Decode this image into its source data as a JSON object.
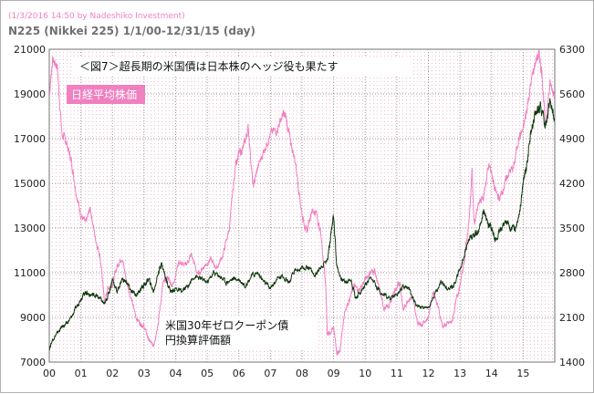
{
  "header": {
    "credit": "(1/3/2016 14:50 by Nadeshiko Investment)",
    "title": "N225 (Nikkei 225)  1/1/00-12/31/15 (day)"
  },
  "chart_data": {
    "type": "line",
    "title": "＜図7＞超長期の米国債は日本株のヘッジ役も果たす",
    "x_range": [
      "2000-01-01",
      "2015-12-31"
    ],
    "x_ticks": [
      "00",
      "01",
      "02",
      "03",
      "04",
      "05",
      "06",
      "07",
      "08",
      "09",
      "10",
      "11",
      "12",
      "13",
      "14",
      "15"
    ],
    "left_axis": {
      "ylim": [
        7000,
        21000
      ],
      "ticks": [
        "7000",
        "9000",
        "11000",
        "13000",
        "15000",
        "17000",
        "19000",
        "21000"
      ]
    },
    "right_axis": {
      "ylim": [
        1400,
        6300
      ],
      "ticks": [
        "1400",
        "2100",
        "2800",
        "3500",
        "4200",
        "4900",
        "5600",
        "6300"
      ]
    },
    "grid": true,
    "series": [
      {
        "name": "日経平均株価",
        "axis": "left",
        "color": "#f080c0",
        "x": [
          2000.0,
          2000.1,
          2000.25,
          2000.4,
          2000.55,
          2000.7,
          2000.85,
          2001.0,
          2001.15,
          2001.3,
          2001.45,
          2001.6,
          2001.7,
          2001.75,
          2001.85,
          2002.0,
          2002.15,
          2002.3,
          2002.45,
          2002.6,
          2002.75,
          2002.9,
          2003.0,
          2003.15,
          2003.3,
          2003.45,
          2003.6,
          2003.75,
          2003.9,
          2004.1,
          2004.3,
          2004.5,
          2004.7,
          2004.9,
          2005.1,
          2005.3,
          2005.5,
          2005.7,
          2005.9,
          2006.0,
          2006.15,
          2006.3,
          2006.45,
          2006.6,
          2006.8,
          2007.0,
          2007.2,
          2007.4,
          2007.5,
          2007.6,
          2007.8,
          2008.0,
          2008.15,
          2008.3,
          2008.45,
          2008.6,
          2008.75,
          2008.8,
          2008.9,
          2009.0,
          2009.1,
          2009.2,
          2009.35,
          2009.5,
          2009.65,
          2009.8,
          2010.0,
          2010.15,
          2010.3,
          2010.45,
          2010.6,
          2010.75,
          2010.9,
          2011.0,
          2011.1,
          2011.2,
          2011.35,
          2011.5,
          2011.65,
          2011.8,
          2012.0,
          2012.15,
          2012.3,
          2012.45,
          2012.6,
          2012.75,
          2012.9,
          2013.0,
          2013.15,
          2013.3,
          2013.38,
          2013.45,
          2013.6,
          2013.75,
          2013.9,
          2014.0,
          2014.1,
          2014.25,
          2014.4,
          2014.55,
          2014.7,
          2014.85,
          2015.0,
          2015.1,
          2015.25,
          2015.4,
          2015.5,
          2015.6,
          2015.7,
          2015.85,
          2016.0
        ],
        "y": [
          18900,
          20500,
          20300,
          17200,
          16800,
          16000,
          14600,
          13600,
          13200,
          13900,
          12600,
          11800,
          10500,
          9600,
          10300,
          10500,
          11300,
          11700,
          10600,
          9800,
          9000,
          8700,
          8600,
          8000,
          7700,
          8800,
          10500,
          10800,
          10400,
          11500,
          11300,
          11800,
          10900,
          11300,
          11600,
          11200,
          11800,
          13000,
          15900,
          16300,
          16600,
          17500,
          14800,
          15700,
          16500,
          17200,
          17400,
          18100,
          17900,
          17100,
          15900,
          13600,
          12800,
          13800,
          13700,
          12700,
          10500,
          8300,
          8300,
          8600,
          7400,
          7500,
          9300,
          9800,
          10400,
          10200,
          10700,
          11000,
          11100,
          10200,
          9400,
          9500,
          10100,
          10300,
          10600,
          9300,
          9800,
          9900,
          8800,
          8700,
          9000,
          10200,
          9500,
          8600,
          8700,
          8800,
          9900,
          10400,
          11700,
          13500,
          15600,
          13200,
          14100,
          14400,
          15800,
          15500,
          14700,
          14300,
          14900,
          15500,
          15700,
          17000,
          17400,
          18200,
          19500,
          20500,
          20800,
          19900,
          17600,
          19400,
          19000
        ]
      },
      {
        "name": "米国30年ゼロクーポン債 円換算評価額",
        "axis": "right",
        "color": "#0f3a0f",
        "x": [
          2000.0,
          2000.1,
          2000.25,
          2000.4,
          2000.55,
          2000.7,
          2000.85,
          2001.0,
          2001.15,
          2001.3,
          2001.45,
          2001.6,
          2001.75,
          2001.9,
          2002.0,
          2002.15,
          2002.3,
          2002.45,
          2002.6,
          2002.75,
          2002.9,
          2003.0,
          2003.15,
          2003.3,
          2003.45,
          2003.55,
          2003.7,
          2003.85,
          2004.0,
          2004.2,
          2004.4,
          2004.6,
          2004.8,
          2005.0,
          2005.2,
          2005.4,
          2005.6,
          2005.8,
          2006.0,
          2006.2,
          2006.4,
          2006.6,
          2006.8,
          2007.0,
          2007.2,
          2007.4,
          2007.6,
          2007.8,
          2008.0,
          2008.2,
          2008.4,
          2008.6,
          2008.8,
          2008.9,
          2009.0,
          2009.1,
          2009.25,
          2009.4,
          2009.55,
          2009.7,
          2009.85,
          2010.0,
          2010.2,
          2010.4,
          2010.6,
          2010.8,
          2011.0,
          2011.2,
          2011.4,
          2011.6,
          2011.8,
          2012.0,
          2012.2,
          2012.4,
          2012.6,
          2012.8,
          2013.0,
          2013.15,
          2013.3,
          2013.45,
          2013.6,
          2013.75,
          2013.9,
          2014.0,
          2014.15,
          2014.3,
          2014.45,
          2014.6,
          2014.75,
          2014.9,
          2015.0,
          2015.1,
          2015.25,
          2015.4,
          2015.55,
          2015.7,
          2015.85,
          2016.0
        ],
        "y": [
          1600,
          1750,
          1850,
          1950,
          2000,
          2100,
          2250,
          2400,
          2500,
          2450,
          2450,
          2400,
          2300,
          2500,
          2700,
          2500,
          2700,
          2650,
          2500,
          2450,
          2550,
          2600,
          2700,
          2500,
          2800,
          2950,
          2700,
          2500,
          2550,
          2500,
          2600,
          2750,
          2700,
          2650,
          2800,
          2750,
          2650,
          2700,
          2700,
          2600,
          2750,
          2800,
          2650,
          2550,
          2700,
          2750,
          2650,
          2850,
          2850,
          2900,
          2750,
          2900,
          3000,
          3350,
          3700,
          2900,
          2700,
          2650,
          2700,
          2400,
          2500,
          2600,
          2700,
          2550,
          2450,
          2400,
          2450,
          2600,
          2550,
          2300,
          2250,
          2250,
          2450,
          2650,
          2550,
          2600,
          2850,
          3100,
          3350,
          3400,
          3450,
          3800,
          3550,
          3500,
          3300,
          3500,
          3600,
          3500,
          3500,
          3800,
          4200,
          4450,
          5000,
          5300,
          5400,
          5100,
          5500,
          5150
        ]
      }
    ],
    "annotations": {
      "title_box": "＜図7＞超長期の米国債は日本株のヘッジ役も果たす",
      "nikkei_label": "日経平均株価",
      "bond_label_line1": "米国30年ゼロクーポン債",
      "bond_label_line2": "円換算評価額"
    }
  }
}
